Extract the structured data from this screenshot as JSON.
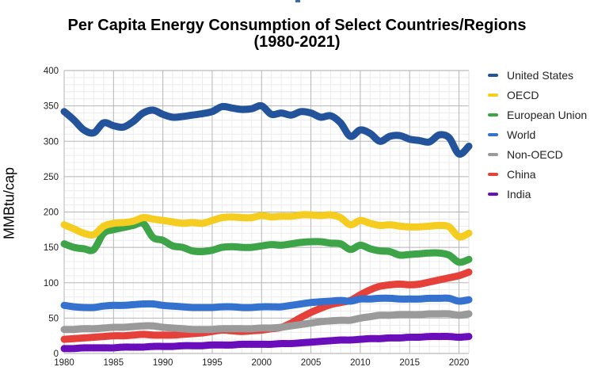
{
  "chart_data": {
    "type": "line",
    "title": "Per Capita Energy Consumption of Select Countries/Regions",
    "subtitle": "(1980-2021)",
    "xlabel": "",
    "ylabel": "MMBtu/cap",
    "xlim": [
      1980,
      2021
    ],
    "ylim": [
      0,
      400
    ],
    "x_ticks": [
      1980,
      1985,
      1990,
      1995,
      2000,
      2005,
      2010,
      2015,
      2020
    ],
    "y_ticks": [
      0,
      50,
      100,
      150,
      200,
      250,
      300,
      350,
      400
    ],
    "grid": true,
    "legend_position": "right",
    "x": [
      1980,
      1981,
      1982,
      1983,
      1984,
      1985,
      1986,
      1987,
      1988,
      1989,
      1990,
      1991,
      1992,
      1993,
      1994,
      1995,
      1996,
      1997,
      1998,
      1999,
      2000,
      2001,
      2002,
      2003,
      2004,
      2005,
      2006,
      2007,
      2008,
      2009,
      2010,
      2011,
      2012,
      2013,
      2014,
      2015,
      2016,
      2017,
      2018,
      2019,
      2020,
      2021
    ],
    "series": [
      {
        "name": "United States",
        "color": "#23539a",
        "values": [
          342,
          330,
          316,
          312,
          326,
          322,
          320,
          328,
          340,
          344,
          338,
          334,
          335,
          337,
          339,
          342,
          349,
          347,
          345,
          346,
          350,
          338,
          340,
          337,
          342,
          340,
          334,
          336,
          326,
          307,
          316,
          311,
          300,
          307,
          308,
          303,
          301,
          299,
          309,
          305,
          282,
          293
        ]
      },
      {
        "name": "OECD",
        "color": "#f5cd20",
        "values": [
          182,
          176,
          170,
          168,
          180,
          184,
          185,
          187,
          192,
          190,
          188,
          186,
          184,
          185,
          184,
          188,
          192,
          193,
          192,
          192,
          195,
          193,
          194,
          194,
          196,
          196,
          195,
          196,
          192,
          182,
          188,
          184,
          181,
          182,
          180,
          179,
          179,
          180,
          181,
          179,
          165,
          170
        ]
      },
      {
        "name": "European Union",
        "color": "#3da447",
        "values": [
          155,
          150,
          148,
          147,
          170,
          175,
          178,
          181,
          184,
          164,
          160,
          152,
          150,
          145,
          144,
          146,
          150,
          151,
          150,
          150,
          152,
          154,
          153,
          155,
          157,
          158,
          158,
          156,
          155,
          147,
          153,
          148,
          145,
          144,
          139,
          140,
          141,
          142,
          142,
          139,
          129,
          133
        ]
      },
      {
        "name": "World",
        "color": "#3571cf",
        "values": [
          68,
          66,
          65,
          65,
          67,
          68,
          68,
          69,
          70,
          70,
          68,
          67,
          66,
          65,
          65,
          65,
          66,
          66,
          65,
          65,
          66,
          66,
          66,
          68,
          70,
          72,
          73,
          74,
          75,
          74,
          77,
          77,
          78,
          78,
          77,
          77,
          77,
          78,
          78,
          78,
          74,
          76
        ]
      },
      {
        "name": "Non-OECD",
        "color": "#9a9a9a",
        "values": [
          34,
          34,
          35,
          35,
          36,
          37,
          37,
          38,
          39,
          39,
          37,
          36,
          35,
          34,
          34,
          34,
          35,
          35,
          35,
          35,
          36,
          36,
          37,
          39,
          41,
          43,
          45,
          46,
          47,
          47,
          50,
          52,
          54,
          54,
          55,
          55,
          55,
          56,
          56,
          56,
          54,
          56
        ]
      },
      {
        "name": "China",
        "color": "#e5403a",
        "values": [
          20,
          21,
          22,
          23,
          24,
          25,
          25,
          26,
          27,
          26,
          26,
          26,
          27,
          28,
          29,
          31,
          33,
          32,
          31,
          32,
          33,
          35,
          37,
          43,
          51,
          58,
          64,
          69,
          72,
          75,
          83,
          90,
          95,
          97,
          98,
          97,
          98,
          101,
          104,
          107,
          110,
          115
        ]
      },
      {
        "name": "India",
        "color": "#6a0dba",
        "values": [
          7,
          7,
          8,
          8,
          8,
          8,
          9,
          9,
          9,
          10,
          10,
          10,
          11,
          11,
          11,
          12,
          12,
          12,
          13,
          13,
          13,
          13,
          14,
          14,
          15,
          16,
          17,
          18,
          19,
          19,
          20,
          21,
          21,
          22,
          22,
          23,
          23,
          24,
          24,
          24,
          23,
          24
        ]
      }
    ]
  }
}
